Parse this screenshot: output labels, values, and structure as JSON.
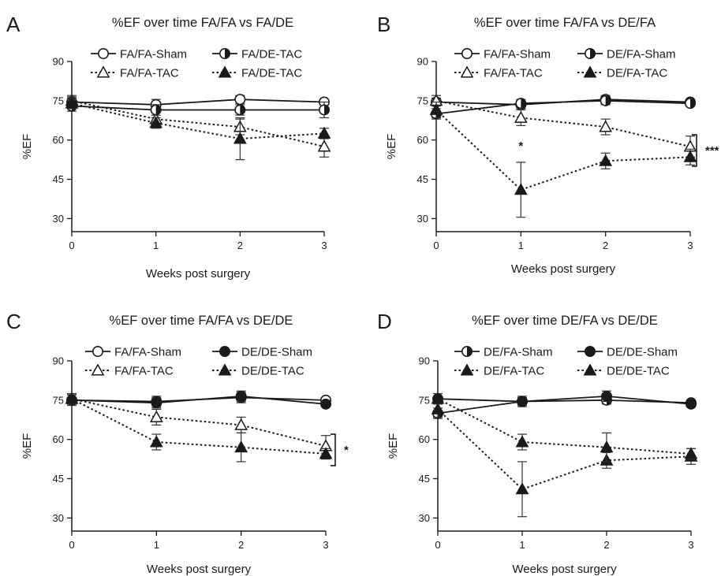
{
  "chart_data": [
    {
      "panel": "A",
      "type": "line",
      "title": "%EF over time FA/FA vs FA/DE",
      "xlabel": "Weeks post surgery",
      "ylabel": "%EF",
      "x": [
        0,
        1,
        2,
        3
      ],
      "xticks": [
        "0",
        "1",
        "2",
        "3"
      ],
      "yticks": [
        "30",
        "45",
        "60",
        "75",
        "90"
      ],
      "xlim": [
        0,
        3
      ],
      "ylim": [
        25,
        90
      ],
      "grid": false,
      "legend_position": "top",
      "series": [
        {
          "name": "FA/FA-Sham",
          "marker": "circle-open",
          "line": "solid",
          "values": [
            74.5,
            73.5,
            75.5,
            74.5
          ],
          "err": [
            2,
            2,
            1.5,
            1
          ]
        },
        {
          "name": "FA/FA-TAC",
          "marker": "triangle-open",
          "line": "dotted",
          "values": [
            75,
            68,
            65,
            57.5
          ],
          "err": [
            2,
            3,
            3,
            4
          ]
        },
        {
          "name": "FA/DE-TAC",
          "marker": "circle-half",
          "line": "solid",
          "values": [
            73,
            71.5,
            71.5,
            71.5
          ],
          "err": [
            2,
            2,
            2,
            3
          ]
        },
        {
          "name": "FA/DE-TAC",
          "marker": "triangle-filled",
          "line": "dotted",
          "values": [
            74,
            66.5,
            60.5,
            62.5
          ],
          "err": [
            2,
            2,
            8,
            2
          ]
        }
      ],
      "annotations": []
    },
    {
      "panel": "B",
      "type": "line",
      "title": "%EF over time FA/FA vs DE/FA",
      "xlabel": "Weeks post surgery",
      "ylabel": "%EF",
      "x": [
        0,
        1,
        2,
        3
      ],
      "xticks": [
        "0",
        "1",
        "2",
        "3"
      ],
      "yticks": [
        "30",
        "45",
        "60",
        "75",
        "90"
      ],
      "xlim": [
        0,
        3
      ],
      "ylim": [
        25,
        90
      ],
      "grid": false,
      "legend_position": "top",
      "series": [
        {
          "name": "FA/FA-Sham",
          "marker": "circle-open",
          "line": "solid",
          "values": [
            74.5,
            73.5,
            75.5,
            74.5
          ],
          "err": [
            1.5,
            1.5,
            1.5,
            1
          ]
        },
        {
          "name": "FA/FA-TAC",
          "marker": "triangle-open",
          "line": "dotted",
          "values": [
            75,
            68.5,
            65,
            57.5
          ],
          "err": [
            2,
            3,
            3,
            4
          ]
        },
        {
          "name": "DE/FA-Sham",
          "marker": "circle-half",
          "line": "solid",
          "values": [
            70,
            74,
            75,
            74
          ],
          "err": [
            2,
            1.5,
            1.5,
            1
          ]
        },
        {
          "name": "DE/FA-TAC",
          "marker": "triangle-filled",
          "line": "dotted",
          "values": [
            71.5,
            41,
            52,
            53.5
          ],
          "err": [
            3,
            10.5,
            3,
            3
          ]
        }
      ],
      "annotations": [
        "*",
        "***"
      ]
    },
    {
      "panel": "C",
      "type": "line",
      "title": "%EF over time FA/FA vs DE/DE",
      "xlabel": "Weeks post surgery",
      "ylabel": "%EF",
      "x": [
        0,
        1,
        2,
        3
      ],
      "xticks": [
        "0",
        "1",
        "2",
        "3"
      ],
      "yticks": [
        "30",
        "45",
        "60",
        "75",
        "90"
      ],
      "xlim": [
        0,
        3
      ],
      "ylim": [
        25,
        90
      ],
      "grid": false,
      "legend_position": "top",
      "series": [
        {
          "name": "FA/FA-Sham",
          "marker": "circle-open",
          "line": "solid",
          "values": [
            75,
            74.5,
            76,
            75
          ],
          "err": [
            2,
            2,
            2,
            1
          ]
        },
        {
          "name": "FA/FA-TAC",
          "marker": "triangle-open",
          "line": "dotted",
          "values": [
            75.5,
            68.5,
            65.5,
            57.5
          ],
          "err": [
            2,
            3,
            3,
            4
          ]
        },
        {
          "name": "DE/DE-Sham",
          "marker": "circle-filled",
          "line": "solid",
          "values": [
            75,
            74,
            76.5,
            73.5
          ],
          "err": [
            2,
            2,
            2,
            1
          ]
        },
        {
          "name": "DE/DE-TAC",
          "marker": "triangle-filled",
          "line": "dotted",
          "values": [
            75.5,
            59,
            57,
            54.5
          ],
          "err": [
            2,
            3,
            5.5,
            2
          ]
        }
      ],
      "annotations": [
        "*"
      ]
    },
    {
      "panel": "D",
      "type": "line",
      "title": "%EF over time DE/FA vs DE/DE",
      "xlabel": "Weeks post surgery",
      "ylabel": "%EF",
      "x": [
        0,
        1,
        2,
        3
      ],
      "xticks": [
        "0",
        "1",
        "2",
        "3"
      ],
      "yticks": [
        "30",
        "45",
        "60",
        "75",
        "90"
      ],
      "xlim": [
        0,
        3
      ],
      "ylim": [
        25,
        90
      ],
      "grid": false,
      "legend_position": "top",
      "series": [
        {
          "name": "DE/FA-Sham",
          "marker": "circle-half",
          "line": "solid",
          "values": [
            70,
            74.5,
            75,
            74
          ],
          "err": [
            2,
            1.5,
            1.5,
            1
          ]
        },
        {
          "name": "DE/FA-TAC",
          "marker": "triangle-filled",
          "line": "dotted",
          "values": [
            71.5,
            41,
            52,
            53.5
          ],
          "err": [
            3,
            10.5,
            3,
            3
          ]
        },
        {
          "name": "DE/DE-Sham",
          "marker": "circle-filled",
          "line": "solid",
          "values": [
            75.5,
            74.5,
            76.5,
            73.5
          ],
          "err": [
            2,
            2,
            2,
            1
          ]
        },
        {
          "name": "DE/DE-TAC",
          "marker": "triangle-filled",
          "line": "dotted",
          "values": [
            75.5,
            59,
            57,
            54.5
          ],
          "err": [
            2,
            3,
            5.5,
            2
          ]
        }
      ],
      "annotations": []
    }
  ]
}
